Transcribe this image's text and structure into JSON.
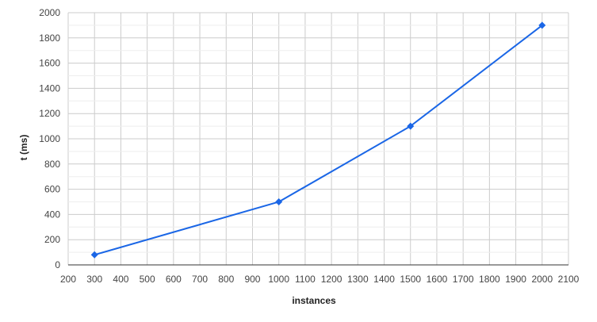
{
  "chart_data": {
    "type": "line",
    "title": "",
    "xlabel": "instances",
    "ylabel": "t (ms)",
    "xlim": [
      200,
      2100
    ],
    "ylim": [
      0,
      2000
    ],
    "x_ticks": [
      "200",
      "300",
      "400",
      "500",
      "600",
      "700",
      "800",
      "900",
      "1000",
      "1100",
      "1200",
      "1300",
      "1400",
      "1500",
      "1600",
      "1700",
      "1800",
      "1900",
      "2000",
      "2100"
    ],
    "y_ticks": [
      "0",
      "200",
      "400",
      "600",
      "800",
      "1000",
      "1200",
      "1400",
      "1600",
      "1800",
      "2000"
    ],
    "grid": true,
    "legend": "none",
    "series": [
      {
        "color": "#1a66e6",
        "marker": "diamond",
        "x": [
          300,
          1000,
          1500,
          2000
        ],
        "y": [
          80,
          500,
          1100,
          1900
        ]
      }
    ]
  }
}
